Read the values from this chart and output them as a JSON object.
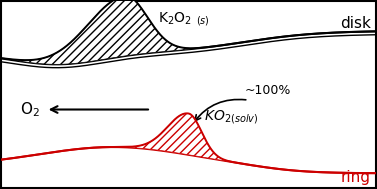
{
  "disk_color": "#000000",
  "ring_color": "#cc0000",
  "bg_color": "#ffffff",
  "border_color": "#000000",
  "label_disk": "disk",
  "label_ring": "ring",
  "figsize": [
    3.77,
    1.89
  ],
  "dpi": 100
}
